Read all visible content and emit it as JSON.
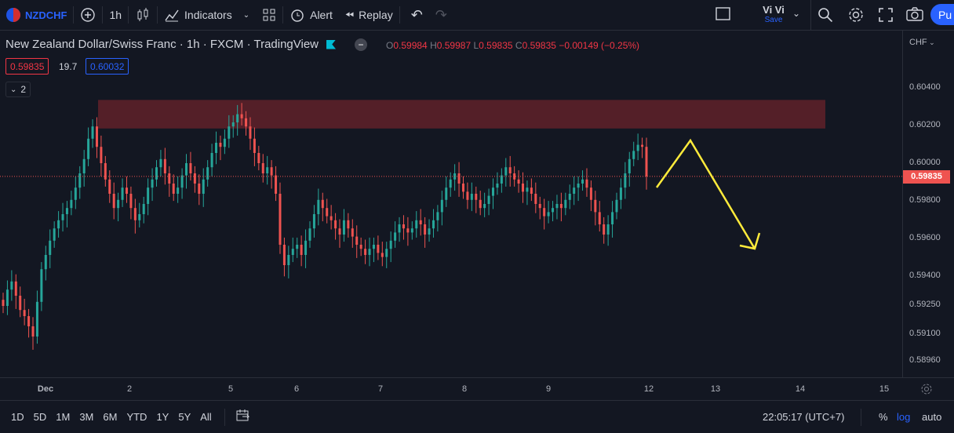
{
  "toolbar": {
    "symbol": "NZDCHF",
    "interval": "1h",
    "indicators_label": "Indicators",
    "alert_label": "Alert",
    "replay_label": "Replay",
    "layout_name": "Vi Vi",
    "layout_status": "Save",
    "publish_label": "Pu"
  },
  "legend": {
    "title": "New Zealand Dollar/Swiss Franc · 1h · FXCM · TradingView",
    "o_label": "O",
    "o_value": "0.59984",
    "h_label": "H",
    "h_value": "0.59987",
    "l_label": "L",
    "l_value": "0.59835",
    "c_label": "C",
    "c_value": "0.59835",
    "change": "−0.00149 (−0.25%)",
    "bid": "0.59835",
    "spread": "19.7",
    "ask": "0.60032",
    "indicator_count": "2"
  },
  "price_axis": {
    "currency": "CHF",
    "labels": [
      "0.60400",
      "0.60200",
      "0.60000",
      "0.59800",
      "0.59600",
      "0.59400",
      "0.59250",
      "0.59100",
      "0.58960"
    ],
    "current_price": "0.59835"
  },
  "time_axis": {
    "labels": [
      "Dec",
      "2",
      "5",
      "6",
      "7",
      "8",
      "9",
      "12",
      "13",
      "14",
      "15"
    ]
  },
  "bottom_bar": {
    "ranges": [
      "1D",
      "5D",
      "1M",
      "3M",
      "6M",
      "YTD",
      "1Y",
      "5Y",
      "All"
    ],
    "clock": "22:05:17 (UTC+7)",
    "percent": "%",
    "log": "log",
    "auto": "auto"
  },
  "colors": {
    "background": "#131722",
    "up": "#26a69a",
    "down": "#ef5350",
    "accent": "#2962ff",
    "resistance_zone": "#5c2029",
    "projection": "#ffeb3b"
  },
  "chart_data": {
    "type": "candlestick",
    "symbol": "NZDCHF",
    "interval": "1h",
    "resistance_zone": [
      0.6007,
      0.6021
    ],
    "last_price": 0.59835,
    "ylim": [
      0.5885,
      0.6055
    ],
    "closes": [
      0.592,
      0.5928,
      0.5932,
      0.5925,
      0.5918,
      0.5915,
      0.591,
      0.5905,
      0.5922,
      0.5938,
      0.5945,
      0.5952,
      0.5958,
      0.5962,
      0.5965,
      0.5968,
      0.5972,
      0.5978,
      0.5985,
      0.5992,
      0.6002,
      0.6008,
      0.5998,
      0.599,
      0.5982,
      0.5975,
      0.5968,
      0.5972,
      0.5978,
      0.5975,
      0.5968,
      0.5962,
      0.5965,
      0.597,
      0.5978,
      0.5982,
      0.5988,
      0.5992,
      0.5985,
      0.598,
      0.5975,
      0.5978,
      0.5984,
      0.599,
      0.5985,
      0.598,
      0.5975,
      0.5982,
      0.5988,
      0.5995,
      0.6,
      0.5998,
      0.6002,
      0.6008,
      0.601,
      0.6014,
      0.6012,
      0.6008,
      0.6002,
      0.5995,
      0.599,
      0.5985,
      0.5988,
      0.5984,
      0.5975,
      0.595,
      0.594,
      0.5945,
      0.5948,
      0.595,
      0.5945,
      0.5952,
      0.5958,
      0.5965,
      0.5972,
      0.5968,
      0.5964,
      0.5962,
      0.5958,
      0.5955,
      0.5962,
      0.5958,
      0.5954,
      0.595,
      0.5948,
      0.5945,
      0.5948,
      0.595,
      0.5946,
      0.5944,
      0.5948,
      0.5952,
      0.5956,
      0.596,
      0.5958,
      0.5956,
      0.5958,
      0.5962,
      0.596,
      0.5955,
      0.5958,
      0.5962,
      0.5966,
      0.5972,
      0.5978,
      0.5982,
      0.5985,
      0.598,
      0.5976,
      0.5972,
      0.5975,
      0.5972,
      0.5968,
      0.597,
      0.5974,
      0.5978,
      0.598,
      0.5984,
      0.5988,
      0.5985,
      0.5982,
      0.598,
      0.5976,
      0.5978,
      0.5975,
      0.597,
      0.5968,
      0.5964,
      0.5966,
      0.5968,
      0.597,
      0.5968,
      0.5972,
      0.5975,
      0.5978,
      0.598,
      0.5982,
      0.5978,
      0.5972,
      0.5966,
      0.596,
      0.5955,
      0.596,
      0.5966,
      0.5972,
      0.5978,
      0.5985,
      0.5992,
      0.5996,
      0.5999,
      0.5998,
      0.59835
    ]
  }
}
